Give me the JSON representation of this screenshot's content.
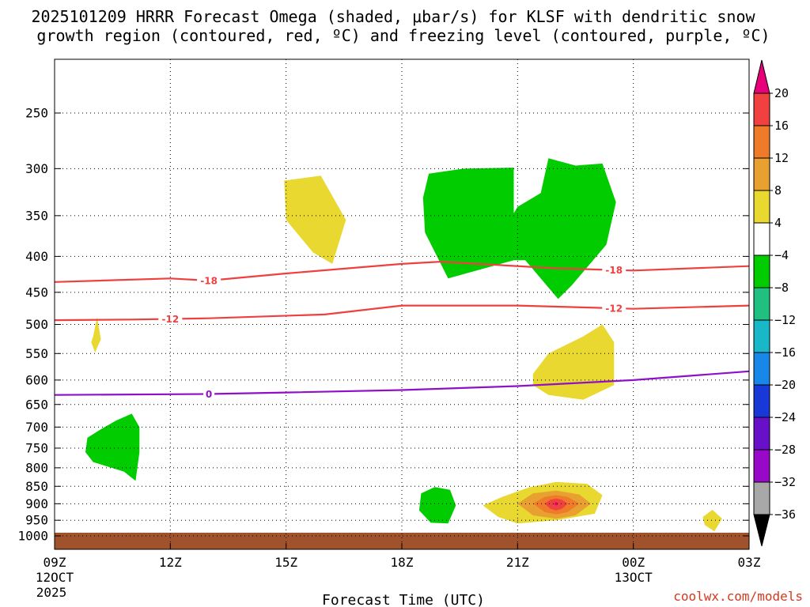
{
  "chart_data": {
    "type": "time-height",
    "title_line1": "2025101209 HRRR Forecast Omega (shaded, μbar/s) for KLSF with dendritic snow",
    "title_line2": "growth region (contoured, red, ºC) and freezing level (contoured, purple, ºC)",
    "xlabel": "Forecast Time (UTC)",
    "credit": "coolwx.com/models",
    "x_range_hours": [
      0,
      18
    ],
    "y_range_hpa": [
      1025,
      200
    ],
    "x_ticks": [
      {
        "hour": 0,
        "label": "09Z",
        "sub1": "12OCT",
        "sub2": "2025"
      },
      {
        "hour": 3,
        "label": "12Z",
        "sub1": "",
        "sub2": ""
      },
      {
        "hour": 6,
        "label": "15Z",
        "sub1": "",
        "sub2": ""
      },
      {
        "hour": 9,
        "label": "18Z",
        "sub1": "",
        "sub2": ""
      },
      {
        "hour": 12,
        "label": "21Z",
        "sub1": "",
        "sub2": ""
      },
      {
        "hour": 15,
        "label": "00Z",
        "sub1": "13OCT",
        "sub2": ""
      },
      {
        "hour": 18,
        "label": "03Z",
        "sub1": "",
        "sub2": ""
      }
    ],
    "y_ticks": [
      250,
      300,
      350,
      400,
      450,
      500,
      550,
      600,
      650,
      700,
      750,
      800,
      850,
      900,
      950,
      1000
    ],
    "colorbar": {
      "labels": [
        "20",
        "16",
        "12",
        "8",
        "4",
        "−4",
        "−8",
        "−12",
        "−16",
        "−20",
        "−24",
        "−28",
        "−32",
        "−36"
      ],
      "colors_top_to_bottom": [
        "#e8007a",
        "#f04040",
        "#ee7a2a",
        "#e8a030",
        "#e8d830",
        "#ffffff",
        "#00cc00",
        "#20c080",
        "#18b8c8",
        "#1888e8",
        "#1838d8",
        "#6810c8",
        "#9808c8",
        "#a8a8a8",
        "#000000"
      ]
    },
    "contours": [
      {
        "name": "dgz-top",
        "value": -18,
        "label": "-18",
        "color": "#ef4040",
        "points": [
          [
            0,
            435
          ],
          [
            3,
            430
          ],
          [
            4,
            433
          ],
          [
            6,
            423
          ],
          [
            9,
            410
          ],
          [
            10,
            407
          ],
          [
            13,
            416
          ],
          [
            15,
            419
          ],
          [
            18,
            413
          ]
        ],
        "label_hours": [
          4,
          14.5
        ]
      },
      {
        "name": "dgz-bottom",
        "value": -12,
        "label": "-12",
        "color": "#ef4040",
        "points": [
          [
            0,
            493
          ],
          [
            2,
            492
          ],
          [
            4,
            490
          ],
          [
            7,
            484
          ],
          [
            9,
            470
          ],
          [
            12,
            470
          ],
          [
            15,
            475
          ],
          [
            18,
            470
          ]
        ],
        "label_hours": [
          3,
          14.5
        ]
      },
      {
        "name": "freezing-level",
        "value": 0,
        "label": "0",
        "color": "#9010c8",
        "points": [
          [
            0,
            630
          ],
          [
            4,
            628
          ],
          [
            6,
            625
          ],
          [
            9,
            620
          ],
          [
            12,
            612
          ],
          [
            15,
            600
          ],
          [
            18,
            583
          ]
        ],
        "label_hours": [
          4
        ]
      }
    ],
    "omega_regions": [
      {
        "name": "omega-pos-a",
        "value": 4,
        "color": "#e8d830",
        "points": [
          [
            5.95,
            312
          ],
          [
            6.9,
            307
          ],
          [
            7.55,
            355
          ],
          [
            7.2,
            410
          ],
          [
            6.7,
            395
          ],
          [
            6.0,
            355
          ]
        ]
      },
      {
        "name": "omega-pos-b",
        "value": 4,
        "color": "#e8d830",
        "points": [
          [
            1.0,
            520
          ],
          [
            1.1,
            488
          ],
          [
            1.2,
            525
          ],
          [
            1.05,
            548
          ],
          [
            0.95,
            530
          ]
        ]
      },
      {
        "name": "omega-pos-c",
        "value": 4,
        "color": "#e8d830",
        "points": [
          [
            12.4,
            588
          ],
          [
            12.8,
            550
          ],
          [
            13.7,
            520
          ],
          [
            14.2,
            500
          ],
          [
            14.5,
            530
          ],
          [
            14.5,
            610
          ],
          [
            13.7,
            640
          ],
          [
            12.8,
            630
          ],
          [
            12.4,
            610
          ]
        ]
      },
      {
        "name": "omega-pos-d",
        "value": 4,
        "color": "#e8d830",
        "points": [
          [
            11.1,
            905
          ],
          [
            11.6,
            880
          ],
          [
            12.3,
            853
          ],
          [
            13,
            838
          ],
          [
            13.8,
            843
          ],
          [
            14.2,
            875
          ],
          [
            14.0,
            930
          ],
          [
            13,
            950
          ],
          [
            12,
            960
          ],
          [
            11.5,
            940
          ]
        ]
      },
      {
        "name": "omega-pos-e",
        "value": 4,
        "color": "#e8d830",
        "points": [
          [
            16.8,
            940
          ],
          [
            17.05,
            918
          ],
          [
            17.3,
            945
          ],
          [
            17.1,
            985
          ],
          [
            16.85,
            965
          ]
        ]
      },
      {
        "name": "omega-pos-f",
        "value": 8,
        "color": "#e8a030",
        "points": [
          [
            12.0,
            900
          ],
          [
            12.4,
            870
          ],
          [
            13,
            862
          ],
          [
            13.6,
            873
          ],
          [
            13.9,
            900
          ],
          [
            13.5,
            935
          ],
          [
            13,
            945
          ],
          [
            12.4,
            935
          ]
        ]
      },
      {
        "name": "omega-pos-g",
        "value": 12,
        "color": "#ee7a2a",
        "points": [
          [
            12.4,
            900
          ],
          [
            12.7,
            880
          ],
          [
            13,
            875
          ],
          [
            13.3,
            880
          ],
          [
            13.6,
            900
          ],
          [
            13.3,
            925
          ],
          [
            13,
            932
          ],
          [
            12.7,
            925
          ]
        ]
      },
      {
        "name": "omega-pos-h",
        "value": 16,
        "color": "#f04040",
        "points": [
          [
            12.7,
            900
          ],
          [
            12.85,
            888
          ],
          [
            13,
            885
          ],
          [
            13.15,
            888
          ],
          [
            13.3,
            900
          ],
          [
            13.15,
            915
          ],
          [
            13,
            920
          ],
          [
            12.85,
            915
          ]
        ]
      },
      {
        "name": "omega-neg-a",
        "value": -4,
        "color": "#00cc00",
        "points": [
          [
            10.6,
            300
          ],
          [
            11.9,
            299
          ],
          [
            11.9,
            405
          ],
          [
            10.2,
            430
          ],
          [
            9.6,
            370
          ],
          [
            9.55,
            330
          ],
          [
            9.7,
            305
          ]
        ]
      },
      {
        "name": "omega-neg-b",
        "value": -4,
        "color": "#00cc00",
        "points": [
          [
            11.9,
            405
          ],
          [
            11.3,
            395
          ],
          [
            12,
            340
          ],
          [
            12.6,
            325
          ],
          [
            12.8,
            290
          ],
          [
            13.5,
            297
          ],
          [
            14.2,
            295
          ],
          [
            14.55,
            335
          ],
          [
            14.3,
            385
          ],
          [
            13.4,
            440
          ],
          [
            13.05,
            460
          ],
          [
            12.2,
            405
          ]
        ]
      },
      {
        "name": "omega-neg-c",
        "value": -4,
        "color": "#00cc00",
        "points": [
          [
            0.85,
            725
          ],
          [
            1.2,
            705
          ],
          [
            1.6,
            685
          ],
          [
            2.0,
            670
          ],
          [
            2.2,
            700
          ],
          [
            2.2,
            760
          ],
          [
            2.1,
            835
          ],
          [
            1.8,
            810
          ],
          [
            1.0,
            785
          ],
          [
            0.8,
            760
          ]
        ]
      },
      {
        "name": "omega-neg-d",
        "value": -4,
        "color": "#00cc00",
        "points": [
          [
            9.5,
            870
          ],
          [
            9.85,
            852
          ],
          [
            10.25,
            860
          ],
          [
            10.4,
            905
          ],
          [
            10.2,
            960
          ],
          [
            9.75,
            958
          ],
          [
            9.45,
            920
          ]
        ]
      }
    ],
    "ground": {
      "label": "terrain",
      "color": "#a0522d",
      "pressure_hpa": 1000
    }
  }
}
